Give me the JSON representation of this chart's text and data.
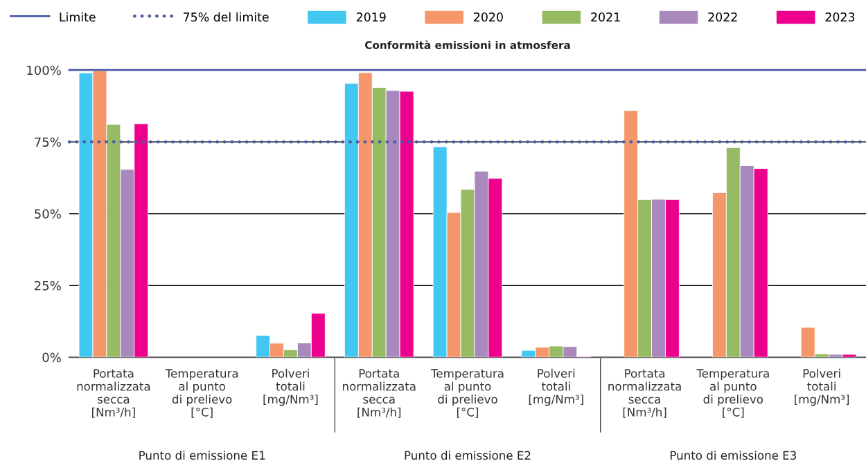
{
  "chart_data": {
    "type": "bar",
    "title": "Conformità emissioni in atmosfera",
    "categories": [
      "Portata\nnormalizzata\nsecca\n[Nm³/h]",
      "Temperatura\nal punto\ndi prelievo\n[°C]",
      "Polveri\ntotali\n[mg/Nm³]",
      "Portata\nnormalizzata\nsecca\n[Nm³/h]",
      "Temperatura\nal punto\ndi prelievo\n[°C]",
      "Polveri\ntotali\n[mg/Nm³]",
      "Portata\nnormalizzata\nsecca\n[Nm³/h]",
      "Temperatura\nal punto\ndi prelievo\n[°C]",
      "Polveri\ntotali\n[mg/Nm³]"
    ],
    "series": [
      {
        "name": "2019",
        "color": "#41c7f2",
        "values": [
          99.0,
          null,
          7.6,
          95.4,
          73.3,
          2.4,
          null,
          null,
          null
        ]
      },
      {
        "name": "2020",
        "color": "#f6976b",
        "values": [
          99.8,
          null,
          4.9,
          99.1,
          50.4,
          3.5,
          85.9,
          57.3,
          10.4
        ]
      },
      {
        "name": "2021",
        "color": "#97bb63",
        "values": [
          81.1,
          null,
          2.6,
          93.9,
          58.5,
          3.9,
          54.9,
          73.0,
          1.2
        ]
      },
      {
        "name": "2022",
        "color": "#a988be",
        "values": [
          65.4,
          null,
          5.0,
          92.9,
          64.8,
          3.7,
          55.0,
          66.7,
          1.0
        ]
      },
      {
        "name": "2023",
        "color": "#ec008c",
        "values": [
          81.3,
          null,
          15.3,
          92.6,
          62.3,
          0.2,
          54.9,
          65.7,
          1.0
        ]
      }
    ],
    "ylim": [
      0,
      100
    ],
    "yticks": [
      {
        "value": 0,
        "label": "0%"
      },
      {
        "value": 25,
        "label": "25%"
      },
      {
        "value": 50,
        "label": "50%"
      },
      {
        "value": 75,
        "label": "75%"
      },
      {
        "value": 100,
        "label": "100%"
      }
    ],
    "grid": "y",
    "legend": "top",
    "ref_lines": [
      {
        "axis": "y",
        "value": 100,
        "label": "Limite",
        "color": "#4a5aa8",
        "line_style": "solid"
      },
      {
        "axis": "y",
        "value": 75,
        "label": "75% del limite",
        "color": "#4a5aa8",
        "line_style": "dotted"
      }
    ],
    "annotations": [
      "Punto di emissione E1",
      "Punto di emissione E2",
      "Punto di emissione E3"
    ]
  }
}
